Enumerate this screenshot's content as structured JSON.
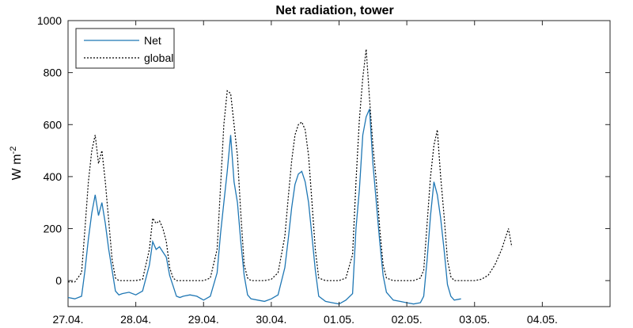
{
  "chart_data": {
    "type": "line",
    "title": "Net radiation, tower",
    "ylabel": "W m",
    "ylabel_exponent": "-2",
    "xlabel": "",
    "xlim": [
      0,
      8
    ],
    "ylim": [
      -100,
      1000
    ],
    "yticks": [
      0,
      200,
      400,
      600,
      800,
      1000
    ],
    "xtick_labels": [
      "27.04.",
      "28.04.",
      "29.04.",
      "30.04.",
      "01.05.",
      "02.05.",
      "03.05.",
      "04.05."
    ],
    "grid": false,
    "legend_position": "top-left",
    "series": [
      {
        "name": "Net",
        "style": "solid",
        "color": "#1f77b4",
        "x": [
          0.0,
          0.1,
          0.2,
          0.25,
          0.3,
          0.35,
          0.4,
          0.45,
          0.5,
          0.55,
          0.6,
          0.65,
          0.7,
          0.75,
          0.8,
          0.9,
          1.0,
          1.1,
          1.2,
          1.25,
          1.3,
          1.35,
          1.4,
          1.45,
          1.5,
          1.55,
          1.6,
          1.65,
          1.7,
          1.8,
          1.9,
          2.0,
          2.1,
          2.2,
          2.25,
          2.3,
          2.35,
          2.4,
          2.45,
          2.5,
          2.55,
          2.6,
          2.65,
          2.7,
          2.8,
          2.9,
          3.0,
          3.1,
          3.2,
          3.25,
          3.3,
          3.35,
          3.4,
          3.45,
          3.5,
          3.55,
          3.6,
          3.65,
          3.7,
          3.8,
          3.9,
          4.0,
          4.1,
          4.2,
          4.25,
          4.3,
          4.35,
          4.4,
          4.45,
          4.5,
          4.55,
          4.6,
          4.65,
          4.7,
          4.8,
          4.9,
          5.0,
          5.1,
          5.2,
          5.25,
          5.3,
          5.35,
          5.4,
          5.45,
          5.5,
          5.55,
          5.6,
          5.65,
          5.7,
          5.8
        ],
        "y": [
          -65,
          -70,
          -60,
          40,
          160,
          260,
          330,
          250,
          300,
          220,
          120,
          40,
          -40,
          -55,
          -50,
          -45,
          -55,
          -40,
          60,
          150,
          120,
          130,
          110,
          90,
          20,
          -20,
          -60,
          -65,
          -60,
          -55,
          -60,
          -75,
          -60,
          30,
          180,
          300,
          420,
          560,
          380,
          300,
          150,
          20,
          -55,
          -70,
          -75,
          -80,
          -70,
          -55,
          50,
          160,
          280,
          370,
          410,
          420,
          380,
          300,
          170,
          40,
          -60,
          -80,
          -85,
          -90,
          -75,
          -50,
          200,
          350,
          560,
          630,
          660,
          450,
          300,
          150,
          20,
          -45,
          -75,
          -80,
          -85,
          -90,
          -85,
          -60,
          80,
          250,
          380,
          330,
          240,
          120,
          -15,
          -60,
          -75,
          -70
        ]
      },
      {
        "name": "global",
        "style": "dotted",
        "color": "#000000",
        "x": [
          0.0,
          0.1,
          0.2,
          0.25,
          0.3,
          0.35,
          0.4,
          0.45,
          0.5,
          0.55,
          0.6,
          0.65,
          0.7,
          0.75,
          0.8,
          0.9,
          1.0,
          1.1,
          1.2,
          1.25,
          1.3,
          1.35,
          1.4,
          1.45,
          1.5,
          1.55,
          1.6,
          1.65,
          1.7,
          1.8,
          1.9,
          2.0,
          2.1,
          2.2,
          2.25,
          2.3,
          2.35,
          2.4,
          2.45,
          2.5,
          2.55,
          2.6,
          2.65,
          2.7,
          2.8,
          2.9,
          3.0,
          3.1,
          3.2,
          3.25,
          3.3,
          3.35,
          3.4,
          3.45,
          3.5,
          3.55,
          3.6,
          3.65,
          3.7,
          3.8,
          3.9,
          4.0,
          4.1,
          4.2,
          4.25,
          4.3,
          4.35,
          4.4,
          4.45,
          4.5,
          4.55,
          4.6,
          4.65,
          4.7,
          4.8,
          4.9,
          5.0,
          5.1,
          5.2,
          5.25,
          5.3,
          5.35,
          5.4,
          5.45,
          5.5,
          5.55,
          5.6,
          5.65,
          5.7,
          5.8,
          5.9,
          6.0,
          6.1,
          6.2,
          6.3,
          6.4,
          6.5,
          6.55
        ],
        "y": [
          -5,
          -5,
          30,
          200,
          380,
          500,
          560,
          450,
          500,
          380,
          230,
          80,
          10,
          0,
          0,
          0,
          0,
          5,
          120,
          240,
          220,
          230,
          200,
          150,
          50,
          10,
          0,
          0,
          0,
          0,
          0,
          0,
          10,
          120,
          360,
          600,
          730,
          720,
          600,
          480,
          260,
          60,
          10,
          0,
          0,
          0,
          5,
          30,
          170,
          320,
          460,
          560,
          600,
          610,
          580,
          480,
          300,
          120,
          10,
          0,
          0,
          0,
          10,
          100,
          380,
          620,
          780,
          890,
          700,
          520,
          380,
          200,
          60,
          10,
          0,
          0,
          0,
          0,
          10,
          40,
          220,
          400,
          520,
          580,
          400,
          250,
          80,
          15,
          0,
          0,
          0,
          0,
          5,
          20,
          60,
          120,
          200,
          130
        ]
      }
    ]
  }
}
